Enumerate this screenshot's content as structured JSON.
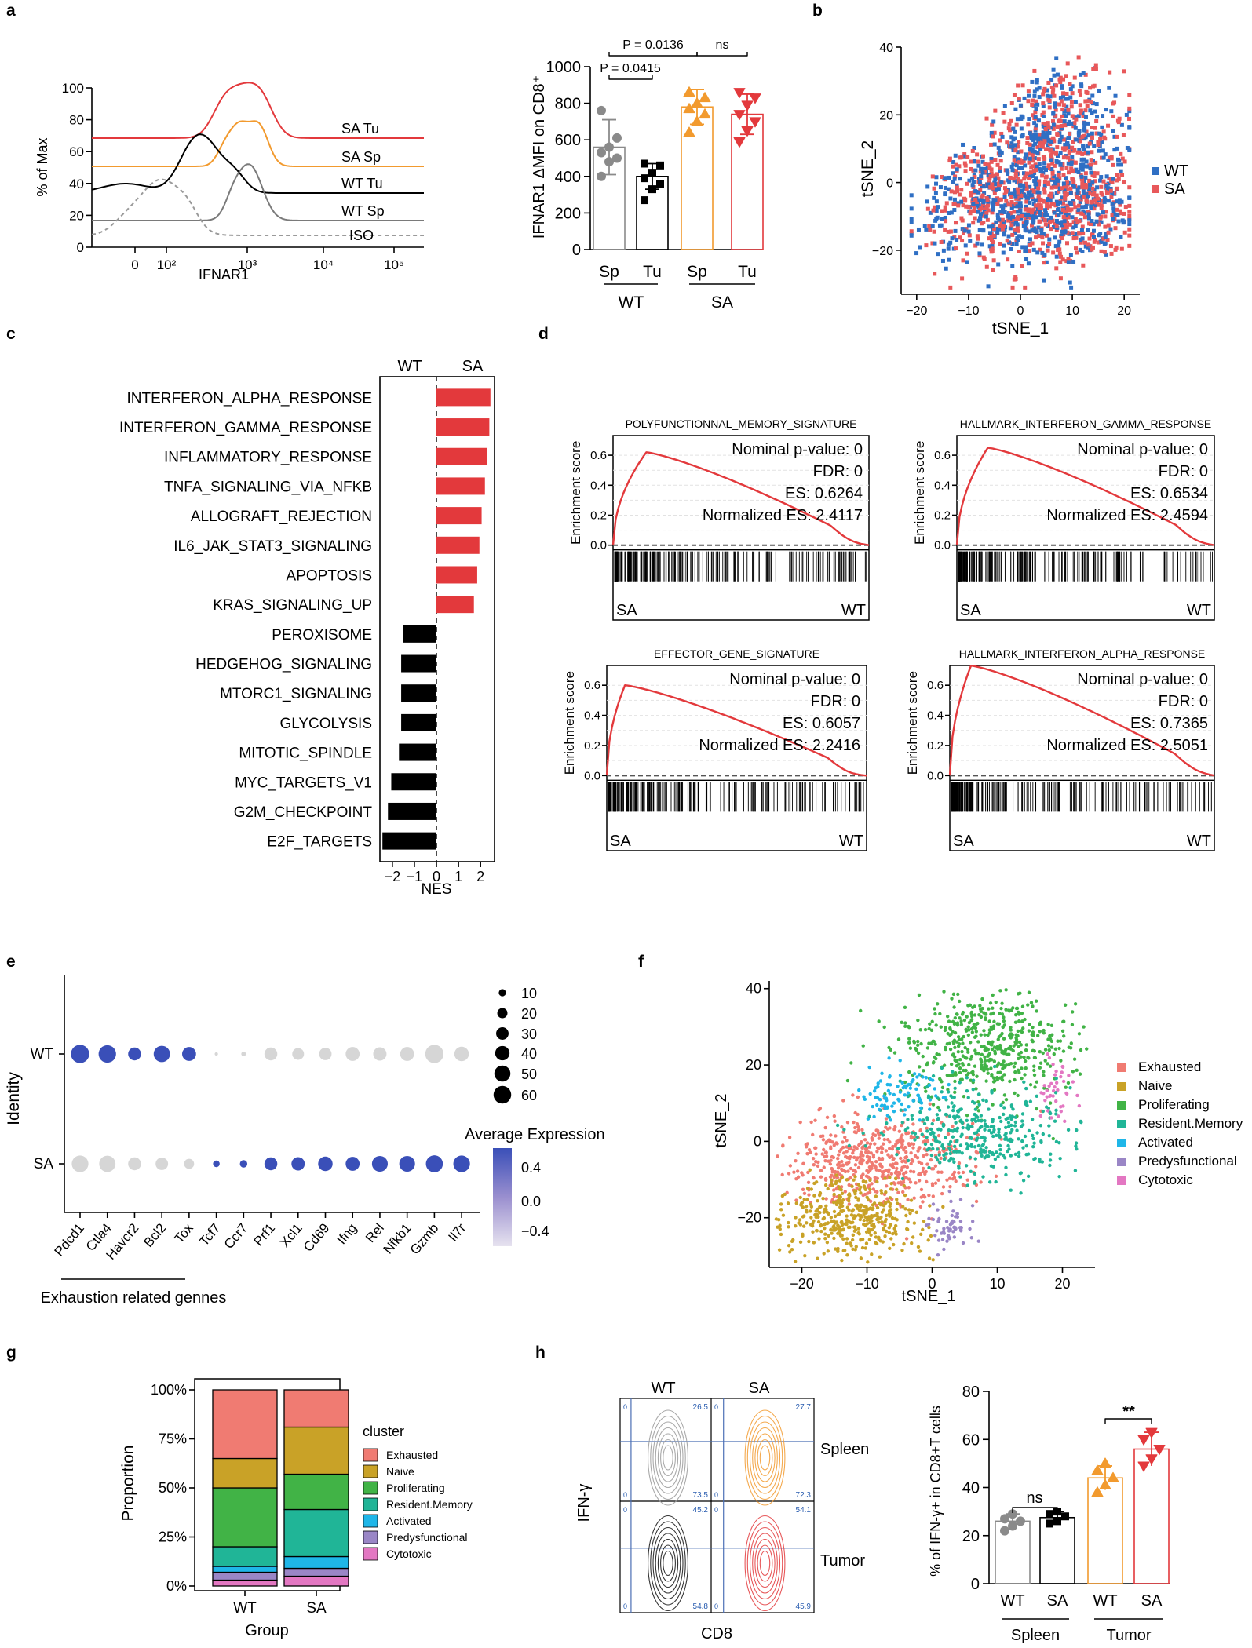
{
  "colors": {
    "red": "#e3393c",
    "orange": "#f29a2e",
    "black": "#000000",
    "grey": "#8a8a8a",
    "blue": "#2f6fc4",
    "pink": "#e8585a",
    "lightgrey": "#d6d6d6",
    "dotblue": "#3a4fb8"
  },
  "panel_labels": {
    "a": "a",
    "b": "b",
    "c": "c",
    "d": "d",
    "e": "e",
    "f": "f",
    "g": "g",
    "h": "h"
  },
  "chart_data": [
    {
      "id": "a_hist",
      "type": "line",
      "xlabel": "IFNAR1",
      "ylabel": "% of Max",
      "yticks": [
        "0",
        "20",
        "40",
        "60",
        "80",
        "100"
      ],
      "xticks": [
        "0",
        "10²",
        "10³",
        "10⁴",
        "10⁵"
      ],
      "series": [
        {
          "name": "SA Tu"
        },
        {
          "name": "SA Sp"
        },
        {
          "name": "WT Tu"
        },
        {
          "name": "WT Sp"
        },
        {
          "name": "ISO"
        }
      ]
    },
    {
      "id": "a_bar",
      "type": "bar",
      "ylabel": "IFNAR1 ΔMFI on CD8⁺",
      "ylim": [
        0,
        1000
      ],
      "yticks": [
        "0",
        "200",
        "400",
        "600",
        "800",
        "1000"
      ],
      "categories": [
        "Sp",
        "Tu",
        "Sp",
        "Tu"
      ],
      "groups": [
        "WT",
        "SA"
      ],
      "values": [
        560,
        400,
        780,
        740
      ],
      "errors": [
        150,
        70,
        95,
        110
      ],
      "points": [
        [
          400,
          480,
          500,
          530,
          560,
          610,
          760
        ],
        [
          270,
          330,
          360,
          390,
          420,
          460,
          470
        ],
        [
          640,
          700,
          740,
          770,
          800,
          830,
          860
        ],
        [
          590,
          650,
          700,
          740,
          790,
          830,
          860
        ]
      ],
      "annotations": [
        "P = 0.0136",
        "ns",
        "P = 0.0415"
      ]
    },
    {
      "id": "b_tsne",
      "type": "scatter",
      "xlabel": "tSNE_1",
      "ylabel": "tSNE_2",
      "xticks": [
        "−20",
        "−10",
        "0",
        "10",
        "20"
      ],
      "yticks": [
        "−20",
        "0",
        "20",
        "40"
      ],
      "xlim": [
        -23,
        23
      ],
      "ylim": [
        -33,
        40
      ],
      "legend": [
        "WT",
        "SA"
      ]
    },
    {
      "id": "c_nes",
      "type": "bar",
      "xlabel": "NES",
      "header_left": "WT",
      "header_right": "SA",
      "xticks": [
        "−2",
        "−1",
        "0",
        "1",
        "2"
      ],
      "xlim": [
        -2.6,
        2.6
      ],
      "categories": [
        "INTERFERON_ALPHA_RESPONSE",
        "INTERFERON_GAMMA_RESPONSE",
        "INFLAMMATORY_RESPONSE",
        "TNFA_SIGNALING_VIA_NFKB",
        "ALLOGRAFT_REJECTION",
        "IL6_JAK_STAT3_SIGNALING",
        "APOPTOSIS",
        "KRAS_SIGNALING_UP",
        "PEROXISOME",
        "HEDGEHOG_SIGNALING",
        "MTORC1_SIGNALING",
        "GLYCOLYSIS",
        "MITOTIC_SPINDLE",
        "MYC_TARGETS_V1",
        "G2M_CHECKPOINT",
        "E2F_TARGETS"
      ],
      "values": [
        2.45,
        2.4,
        2.3,
        2.2,
        2.05,
        1.95,
        1.85,
        1.7,
        -1.5,
        -1.6,
        -1.6,
        -1.6,
        -1.7,
        -2.05,
        -2.2,
        -2.45
      ]
    },
    {
      "id": "d_gsea",
      "type": "line",
      "ylabel": "Enrichment score",
      "yticks": [
        "0.0",
        "0.2",
        "0.4",
        "0.6"
      ],
      "left_label": "SA",
      "right_label": "WT",
      "plots": [
        {
          "title": "POLYFUNCTIONNAL_MEMORY_SIGNATURE",
          "pval": "Nominal p-value: 0",
          "fdr": "FDR: 0",
          "es": "ES: 0.6264",
          "nes": "Normalized ES: 2.4117"
        },
        {
          "title": "HALLMARK_INTERFERON_GAMMA_RESPONSE",
          "pval": "Nominal p-value: 0",
          "fdr": "FDR: 0",
          "es": "ES: 0.6534",
          "nes": "Normalized ES: 2.4594"
        },
        {
          "title": "EFFECTOR_GENE_SIGNATURE",
          "pval": "Nominal p-value: 0",
          "fdr": "FDR: 0",
          "es": "ES: 0.6057",
          "nes": "Normalized ES: 2.2416"
        },
        {
          "title": "HALLMARK_INTERFERON_ALPHA_RESPONSE",
          "pval": "Nominal p-value: 0",
          "fdr": "FDR: 0",
          "es": "ES: 0.7365",
          "nes": "Normalized ES: 2.5051"
        }
      ]
    },
    {
      "id": "e_dot",
      "type": "scatter",
      "ylabel": "Identity",
      "rows": [
        "WT",
        "SA"
      ],
      "genes": [
        "Pdcd1",
        "Ctla4",
        "Havcr2",
        "Bcl2",
        "Tox",
        "Tcf7",
        "Ccr7",
        "Prf1",
        "Xcl1",
        "Cd69",
        "Ifng",
        "Rel",
        "Nfkb1",
        "Gzmb",
        "Il7r"
      ],
      "wt_size": [
        60,
        55,
        30,
        48,
        35,
        2,
        4,
        30,
        25,
        28,
        35,
        32,
        35,
        60,
        38
      ],
      "wt_expr": [
        0.5,
        0.5,
        0.5,
        0.5,
        0.5,
        -0.5,
        -0.5,
        -0.5,
        -0.5,
        -0.5,
        -0.5,
        -0.5,
        -0.5,
        -0.5,
        -0.5
      ],
      "sa_size": [
        50,
        48,
        30,
        28,
        18,
        8,
        10,
        30,
        32,
        38,
        35,
        45,
        45,
        52,
        50
      ],
      "sa_expr": [
        -0.5,
        -0.5,
        -0.5,
        -0.5,
        -0.5,
        0.5,
        0.5,
        0.5,
        0.5,
        0.5,
        0.5,
        0.5,
        0.5,
        0.5,
        0.5
      ],
      "size_legend": [
        "10",
        "20",
        "30",
        "40",
        "50",
        "60"
      ],
      "color_legend_title": "Average Expression",
      "color_ticks": [
        "0.4",
        "0.0",
        "−0.4"
      ],
      "bracket_label": "Exhaustion related gennes"
    },
    {
      "id": "f_tsne",
      "type": "scatter",
      "xlabel": "tSNE_1",
      "ylabel": "tSNE_2",
      "xticks": [
        "−20",
        "−10",
        "0",
        "10",
        "20"
      ],
      "yticks": [
        "−20",
        "0",
        "20",
        "40"
      ],
      "clusters": [
        {
          "name": "Exhausted",
          "color": "#f07b72"
        },
        {
          "name": "Naive",
          "color": "#c9a227"
        },
        {
          "name": "Proliferating",
          "color": "#41b346"
        },
        {
          "name": "Resident.Memory",
          "color": "#20b597"
        },
        {
          "name": "Activated",
          "color": "#1fb6e8"
        },
        {
          "name": "Predysfunctional",
          "color": "#9a86c6"
        },
        {
          "name": "Cytotoxic",
          "color": "#e377c2"
        }
      ]
    },
    {
      "id": "g_prop",
      "type": "bar",
      "xlabel": "Group",
      "ylabel": "Proportion",
      "legend_title": "cluster",
      "categories": [
        "WT",
        "SA"
      ],
      "yticks": [
        "0%",
        "25%",
        "50%",
        "75%",
        "100%"
      ],
      "series": [
        {
          "name": "Exhausted",
          "color": "#f07b72",
          "values": [
            0.35,
            0.19
          ]
        },
        {
          "name": "Naive",
          "color": "#c9a227",
          "values": [
            0.15,
            0.24
          ]
        },
        {
          "name": "Proliferating",
          "color": "#41b346",
          "values": [
            0.3,
            0.18
          ]
        },
        {
          "name": "Resident.Memory",
          "color": "#20b597",
          "values": [
            0.1,
            0.24
          ]
        },
        {
          "name": "Activated",
          "color": "#1fb6e8",
          "values": [
            0.03,
            0.06
          ]
        },
        {
          "name": "Predysfunctional",
          "color": "#9a86c6",
          "values": [
            0.04,
            0.04
          ]
        },
        {
          "name": "Cytotoxic",
          "color": "#e377c2",
          "values": [
            0.03,
            0.05
          ]
        }
      ]
    },
    {
      "id": "h_flow",
      "type": "scatter",
      "xlabel": "CD8",
      "ylabel": "IFN-γ",
      "cols": [
        "WT",
        "SA"
      ],
      "rows": [
        "Spleen",
        "Tumor"
      ],
      "quadrants": [
        [
          "0",
          "26.5",
          "0",
          "73.5"
        ],
        [
          "0",
          "27.7",
          "0",
          "72.3"
        ],
        [
          "0",
          "45.2",
          "0",
          "54.8"
        ],
        [
          "0",
          "54.1",
          "0",
          "45.9"
        ]
      ]
    },
    {
      "id": "h_bar",
      "type": "bar",
      "ylabel": "% of IFN-γ+ in CD8+T cells",
      "ylim": [
        0,
        80
      ],
      "yticks": [
        "0",
        "20",
        "40",
        "60",
        "80"
      ],
      "categories": [
        "WT",
        "SA",
        "WT",
        "SA"
      ],
      "groups": [
        "Spleen",
        "Tumor"
      ],
      "values": [
        26,
        27.5,
        44,
        56
      ],
      "errors": [
        3,
        2.5,
        5,
        7
      ],
      "points": [
        [
          22,
          24,
          26,
          27,
          29
        ],
        [
          25,
          26,
          28,
          29,
          30
        ],
        [
          38,
          41,
          44,
          47,
          50
        ],
        [
          49,
          52,
          56,
          60,
          63
        ]
      ],
      "annotations": [
        "ns",
        "**"
      ]
    }
  ]
}
